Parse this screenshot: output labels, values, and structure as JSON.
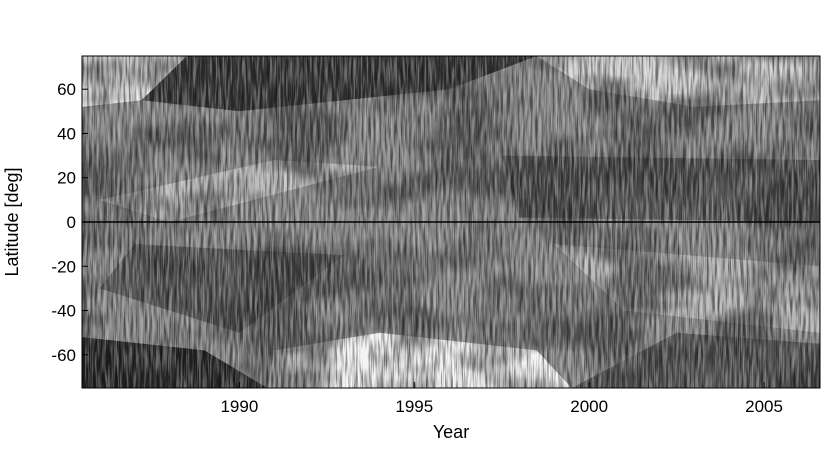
{
  "chart_data": {
    "type": "heatmap",
    "title": "",
    "xlabel": "Year",
    "ylabel": "Latitude [deg]",
    "xlim": [
      1985.5,
      2006.6
    ],
    "ylim": [
      -75,
      75
    ],
    "colormap": "grayscale",
    "equator_line": 0,
    "x_ticks": [
      {
        "value": 1990,
        "label": "1990"
      },
      {
        "value": 1995,
        "label": "1995"
      },
      {
        "value": 2000,
        "label": "2000"
      },
      {
        "value": 2005,
        "label": "2005"
      }
    ],
    "y_ticks": [
      {
        "value": 60,
        "label": "60"
      },
      {
        "value": 40,
        "label": "40"
      },
      {
        "value": 20,
        "label": "20"
      },
      {
        "value": 0,
        "label": "0"
      },
      {
        "value": -20,
        "label": "-20"
      },
      {
        "value": -40,
        "label": "-40"
      },
      {
        "value": -60,
        "label": "-60"
      }
    ],
    "colors": {
      "dark": "#111111",
      "mid": "#6e6e6e",
      "light": "#f5f5f5",
      "frame": "#000000"
    }
  }
}
